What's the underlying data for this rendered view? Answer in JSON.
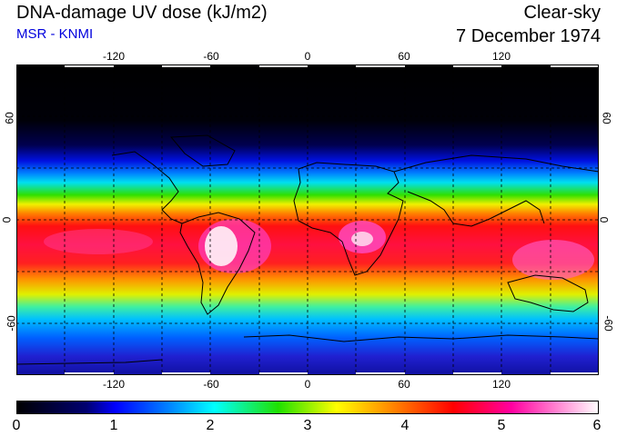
{
  "header": {
    "title": "DNA-damage UV dose (kJ/m2)",
    "subtitle": "MSR - KNMI",
    "sky_condition": "Clear-sky",
    "date": "7 December 1974"
  },
  "map": {
    "projection": "equirectangular",
    "lon_range": [
      -180,
      180
    ],
    "lat_range": [
      -90,
      90
    ],
    "longitude_ticks": [
      "-120",
      "-60",
      "0",
      "60",
      "120"
    ],
    "latitude_ticks": [
      "60",
      "0",
      "-60"
    ],
    "gridlines": "dashed",
    "coastlines": true
  },
  "colorbar": {
    "min": 0,
    "max": 6,
    "labels": [
      "0",
      "1",
      "2",
      "3",
      "4",
      "5",
      "6"
    ],
    "colors": [
      "#000000",
      "#0000c0",
      "#0070ff",
      "#00e0ff",
      "#20e000",
      "#f0f000",
      "#ff8000",
      "#ff0000",
      "#ff00a0",
      "#ffffff"
    ]
  },
  "colors": {
    "subtitle": "#0000dd",
    "gridline": "#000000"
  }
}
